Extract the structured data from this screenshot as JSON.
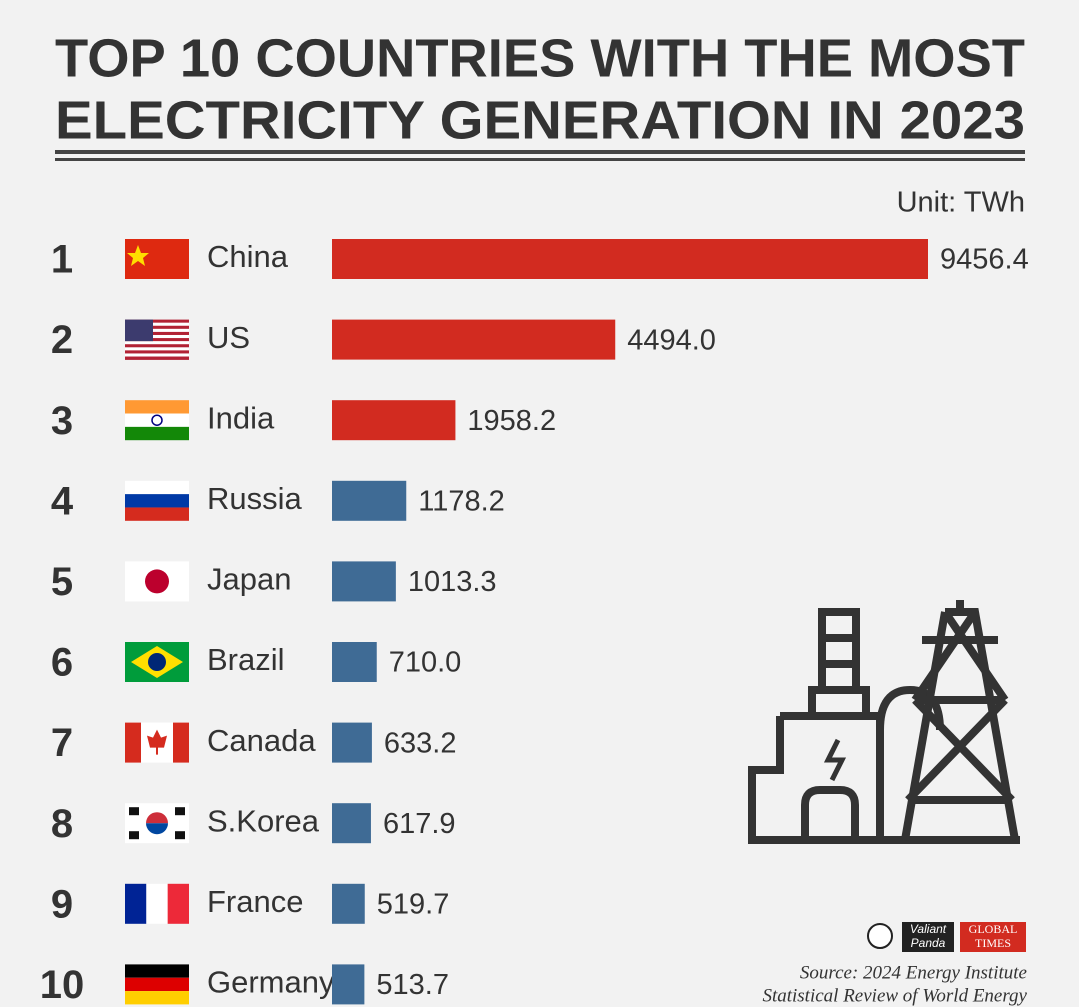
{
  "chart_data": {
    "type": "bar",
    "title_lines": [
      "TOP 10 COUNTRIES WITH THE MOST",
      "ELECTRICITY GENERATION IN 2023"
    ],
    "unit_label": "Unit: TWh",
    "ranks": [
      1,
      2,
      3,
      4,
      5,
      6,
      7,
      8,
      9,
      10
    ],
    "categories": [
      "China",
      "US",
      "India",
      "Russia",
      "Japan",
      "Brazil",
      "Canada",
      "S.Korea",
      "France",
      "Germany"
    ],
    "values": [
      9456.4,
      4494.0,
      1958.2,
      1178.2,
      1013.3,
      710.0,
      633.2,
      617.9,
      519.7,
      513.7
    ],
    "value_labels": [
      "9456.4",
      "4494.0",
      "1958.2",
      "1178.2",
      "1013.3",
      "710.0",
      "633.2",
      "617.9",
      "519.7",
      "513.7"
    ],
    "colors": [
      "#d22b20",
      "#d22b20",
      "#d22b20",
      "#3f6b95",
      "#3f6b95",
      "#3f6b95",
      "#3f6b95",
      "#3f6b95",
      "#3f6b95",
      "#3f6b95"
    ],
    "xlim": [
      0,
      9456.4
    ],
    "source_lines": [
      "Source: 2024 Energy Institute",
      "Statistical Review of World Energy"
    ],
    "logos": [
      "Valiant",
      "Panda",
      "GLOBAL",
      "TIMES"
    ]
  }
}
